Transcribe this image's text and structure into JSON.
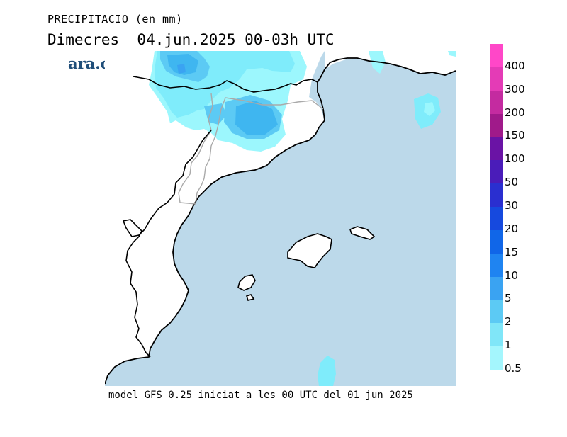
{
  "header": {
    "title": "PRECIPITACIO (en mm)",
    "subtitle": "Dimecres  04.jun.2025 00-03h UTC"
  },
  "logo": {
    "text": "ara.cat"
  },
  "footer": {
    "text": "model GFS 0.25 iniciat a les 00 UTC del 01 jun 2025"
  },
  "map": {
    "region": "Catalunya, Comunitat Valenciana, Illes Balears",
    "sea_color": "#bcd9ea",
    "land_color": "#ffffff",
    "precip_palette": {
      "0.5": "#9cf7fd",
      "1": "#7fecfb",
      "2": "#5cd4f6",
      "5": "#3fb6f0"
    }
  },
  "legend": {
    "levels": [
      {
        "label": "400",
        "color": "#ff47c8"
      },
      {
        "label": "300",
        "color": "#e43bb6"
      },
      {
        "label": "200",
        "color": "#c42ba0"
      },
      {
        "label": "150",
        "color": "#a01a8a"
      },
      {
        "label": "100",
        "color": "#6a13a5"
      },
      {
        "label": "50",
        "color": "#4a1cb9"
      },
      {
        "label": "30",
        "color": "#2a2fd0"
      },
      {
        "label": "20",
        "color": "#1649de"
      },
      {
        "label": "15",
        "color": "#1066e8"
      },
      {
        "label": "10",
        "color": "#1f84f1"
      },
      {
        "label": "5",
        "color": "#3aa3f2"
      },
      {
        "label": "2",
        "color": "#5ccaf4"
      },
      {
        "label": "1",
        "color": "#80e6f8"
      },
      {
        "label": "0.5",
        "color": "#a4f6fd"
      }
    ]
  }
}
